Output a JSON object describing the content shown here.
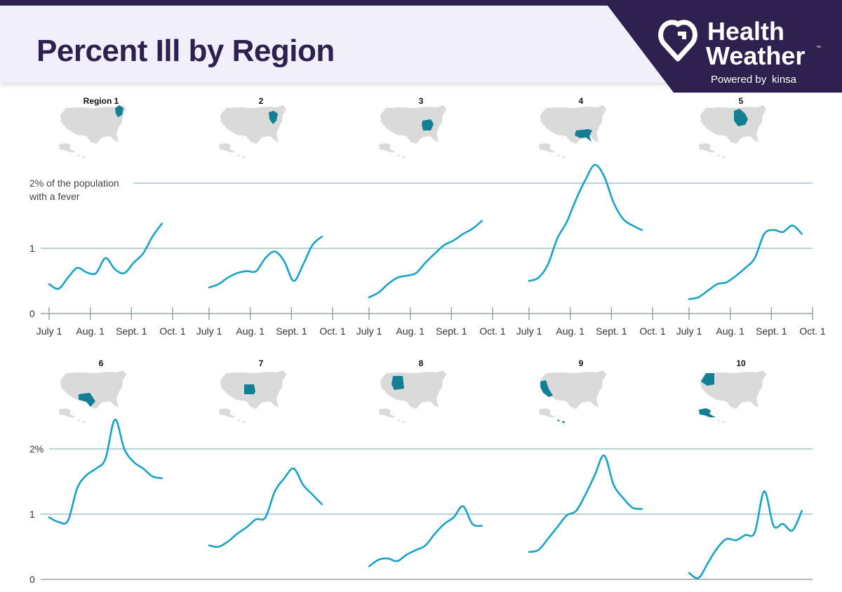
{
  "header": {
    "title": "Percent Ill by Region",
    "brand_line1": "Health",
    "brand_line2": "Weather",
    "brand_tm": "™",
    "brand_powered": "Powered by",
    "brand_kinsa": "kinsa"
  },
  "colors": {
    "line": "#16a3c6",
    "highlight": "#137f95",
    "map": "#dadada",
    "grid": "#9fc4cc",
    "brand_bg": "#2e2150"
  },
  "chart_data": {
    "type": "line",
    "xlabel": "",
    "ylabel": "",
    "x_tick_labels": [
      "July 1",
      "Aug. 1",
      "Sept. 1",
      "Oct. 1"
    ],
    "y_tick_labels_top": [
      "0",
      "1",
      "2% of the population",
      "with a fever"
    ],
    "y_tick_labels_bottom": [
      "0",
      "1",
      "2%"
    ],
    "ylim": [
      0,
      2.3
    ],
    "x_range": [
      "July 1",
      "Oct. 1"
    ],
    "regions": [
      {
        "label": "Region 1",
        "x": [
          "2024-07-01",
          "2024-07-08",
          "2024-07-15",
          "2024-07-22",
          "2024-07-29",
          "2024-08-05",
          "2024-08-12",
          "2024-08-19",
          "2024-08-26",
          "2024-09-02",
          "2024-09-09",
          "2024-09-16",
          "2024-09-23"
        ],
        "values": [
          0.45,
          0.38,
          0.55,
          0.7,
          0.63,
          0.62,
          0.85,
          0.68,
          0.62,
          0.78,
          0.92,
          1.18,
          1.38
        ]
      },
      {
        "label": "2",
        "x": [
          "2024-07-01",
          "2024-07-08",
          "2024-07-15",
          "2024-07-22",
          "2024-07-29",
          "2024-08-05",
          "2024-08-12",
          "2024-08-19",
          "2024-08-26",
          "2024-09-02",
          "2024-09-09",
          "2024-09-16",
          "2024-09-23"
        ],
        "values": [
          0.4,
          0.45,
          0.55,
          0.62,
          0.65,
          0.65,
          0.85,
          0.95,
          0.8,
          0.5,
          0.75,
          1.05,
          1.18
        ]
      },
      {
        "label": "3",
        "x": [
          "2024-07-01",
          "2024-07-08",
          "2024-07-15",
          "2024-07-22",
          "2024-07-29",
          "2024-08-05",
          "2024-08-12",
          "2024-08-19",
          "2024-08-26",
          "2024-09-02",
          "2024-09-09",
          "2024-09-16",
          "2024-09-23"
        ],
        "values": [
          0.25,
          0.32,
          0.45,
          0.55,
          0.58,
          0.62,
          0.78,
          0.92,
          1.05,
          1.12,
          1.22,
          1.3,
          1.42
        ]
      },
      {
        "label": "4",
        "x": [
          "2024-07-01",
          "2024-07-08",
          "2024-07-15",
          "2024-07-22",
          "2024-07-29",
          "2024-08-05",
          "2024-08-12",
          "2024-08-19",
          "2024-08-26",
          "2024-09-02",
          "2024-09-09",
          "2024-09-16",
          "2024-09-23"
        ],
        "values": [
          0.5,
          0.55,
          0.75,
          1.15,
          1.4,
          1.75,
          2.05,
          2.28,
          2.1,
          1.7,
          1.45,
          1.35,
          1.28
        ]
      },
      {
        "label": "5",
        "x": [
          "2024-07-01",
          "2024-07-08",
          "2024-07-15",
          "2024-07-22",
          "2024-07-29",
          "2024-08-05",
          "2024-08-12",
          "2024-08-19",
          "2024-08-26",
          "2024-09-02",
          "2024-09-09",
          "2024-09-16",
          "2024-09-23"
        ],
        "values": [
          0.22,
          0.25,
          0.35,
          0.45,
          0.48,
          0.58,
          0.7,
          0.85,
          1.22,
          1.28,
          1.25,
          1.35,
          1.22
        ]
      },
      {
        "label": "6",
        "x": [
          "2024-07-01",
          "2024-07-08",
          "2024-07-15",
          "2024-07-22",
          "2024-07-29",
          "2024-08-05",
          "2024-08-12",
          "2024-08-19",
          "2024-08-26",
          "2024-09-02",
          "2024-09-09",
          "2024-09-16",
          "2024-09-23"
        ],
        "values": [
          0.95,
          0.88,
          0.9,
          1.4,
          1.6,
          1.7,
          1.85,
          2.45,
          2.0,
          1.8,
          1.7,
          1.58,
          1.55
        ]
      },
      {
        "label": "7",
        "x": [
          "2024-07-01",
          "2024-07-08",
          "2024-07-15",
          "2024-07-22",
          "2024-07-29",
          "2024-08-05",
          "2024-08-12",
          "2024-08-19",
          "2024-08-26",
          "2024-09-02",
          "2024-09-09",
          "2024-09-16",
          "2024-09-23"
        ],
        "values": [
          0.52,
          0.5,
          0.58,
          0.7,
          0.8,
          0.92,
          0.95,
          1.35,
          1.55,
          1.7,
          1.45,
          1.3,
          1.15
        ]
      },
      {
        "label": "8",
        "x": [
          "2024-07-01",
          "2024-07-08",
          "2024-07-15",
          "2024-07-22",
          "2024-07-29",
          "2024-08-05",
          "2024-08-12",
          "2024-08-19",
          "2024-08-26",
          "2024-09-02",
          "2024-09-09",
          "2024-09-16",
          "2024-09-23"
        ],
        "values": [
          0.2,
          0.3,
          0.32,
          0.28,
          0.38,
          0.45,
          0.52,
          0.7,
          0.85,
          0.95,
          1.12,
          0.85,
          0.82
        ]
      },
      {
        "label": "9",
        "x": [
          "2024-07-01",
          "2024-07-08",
          "2024-07-15",
          "2024-07-22",
          "2024-07-29",
          "2024-08-05",
          "2024-08-12",
          "2024-08-19",
          "2024-08-26",
          "2024-09-02",
          "2024-09-09",
          "2024-09-16",
          "2024-09-23"
        ],
        "values": [
          0.42,
          0.45,
          0.62,
          0.8,
          0.98,
          1.05,
          1.3,
          1.6,
          1.9,
          1.45,
          1.25,
          1.1,
          1.08
        ]
      },
      {
        "label": "10",
        "x": [
          "2024-07-01",
          "2024-07-08",
          "2024-07-15",
          "2024-07-22",
          "2024-07-29",
          "2024-08-05",
          "2024-08-12",
          "2024-08-19",
          "2024-08-26",
          "2024-09-02",
          "2024-09-09",
          "2024-09-16",
          "2024-09-23"
        ],
        "values": [
          0.1,
          0.02,
          0.25,
          0.48,
          0.62,
          0.6,
          0.68,
          0.72,
          1.35,
          0.82,
          0.85,
          0.75,
          1.05
        ]
      }
    ]
  }
}
